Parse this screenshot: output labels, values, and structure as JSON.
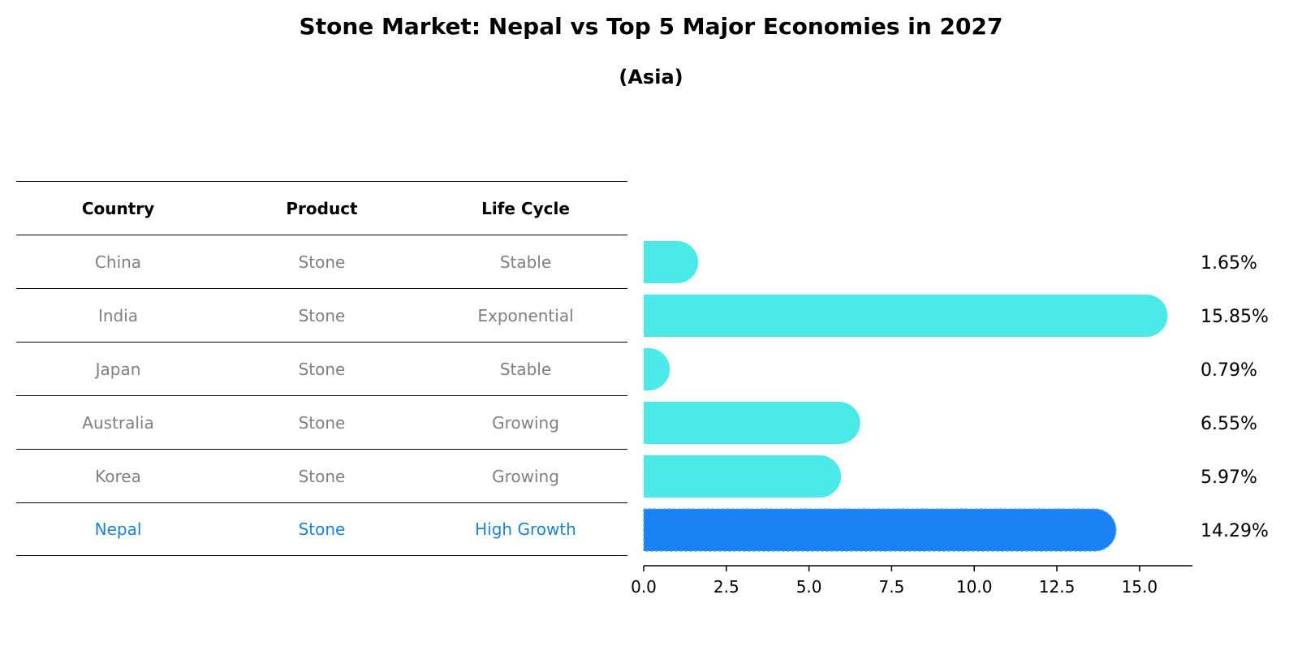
{
  "title": "Stone Market: Nepal vs Top 5 Major Economies in 2027",
  "subtitle": "(Asia)",
  "table": {
    "headers": [
      "Country",
      "Product",
      "Life Cycle"
    ],
    "rows": [
      {
        "country": "China",
        "product": "Stone",
        "life_cycle": "Stable"
      },
      {
        "country": "India",
        "product": "Stone",
        "life_cycle": "Exponential"
      },
      {
        "country": "Japan",
        "product": "Stone",
        "life_cycle": "Stable"
      },
      {
        "country": "Australia",
        "product": "Stone",
        "life_cycle": "Growing"
      },
      {
        "country": "Korea",
        "product": "Stone",
        "life_cycle": "Growing"
      },
      {
        "country": "Nepal",
        "product": "Stone",
        "life_cycle": "High Growth"
      }
    ]
  },
  "colors": {
    "bar": "#4beae9",
    "highlight": "#1a82f4",
    "highlight_text": "#1a82d6",
    "muted_text": "#808080"
  },
  "chart_data": {
    "type": "bar",
    "orientation": "horizontal",
    "categories": [
      "China",
      "India",
      "Japan",
      "Australia",
      "Korea",
      "Nepal"
    ],
    "values": [
      1.65,
      15.85,
      0.79,
      6.55,
      5.97,
      14.29
    ],
    "value_labels": [
      "1.65%",
      "15.85%",
      "0.79%",
      "6.55%",
      "5.97%",
      "14.29%"
    ],
    "highlight_category": "Nepal",
    "xlim": [
      0,
      16.6
    ],
    "xticks": [
      0.0,
      2.5,
      5.0,
      7.5,
      10.0,
      12.5,
      15.0
    ],
    "xtick_labels": [
      "0.0",
      "2.5",
      "5.0",
      "7.5",
      "10.0",
      "12.5",
      "15.0"
    ],
    "xlabel": "",
    "ylabel": ""
  }
}
